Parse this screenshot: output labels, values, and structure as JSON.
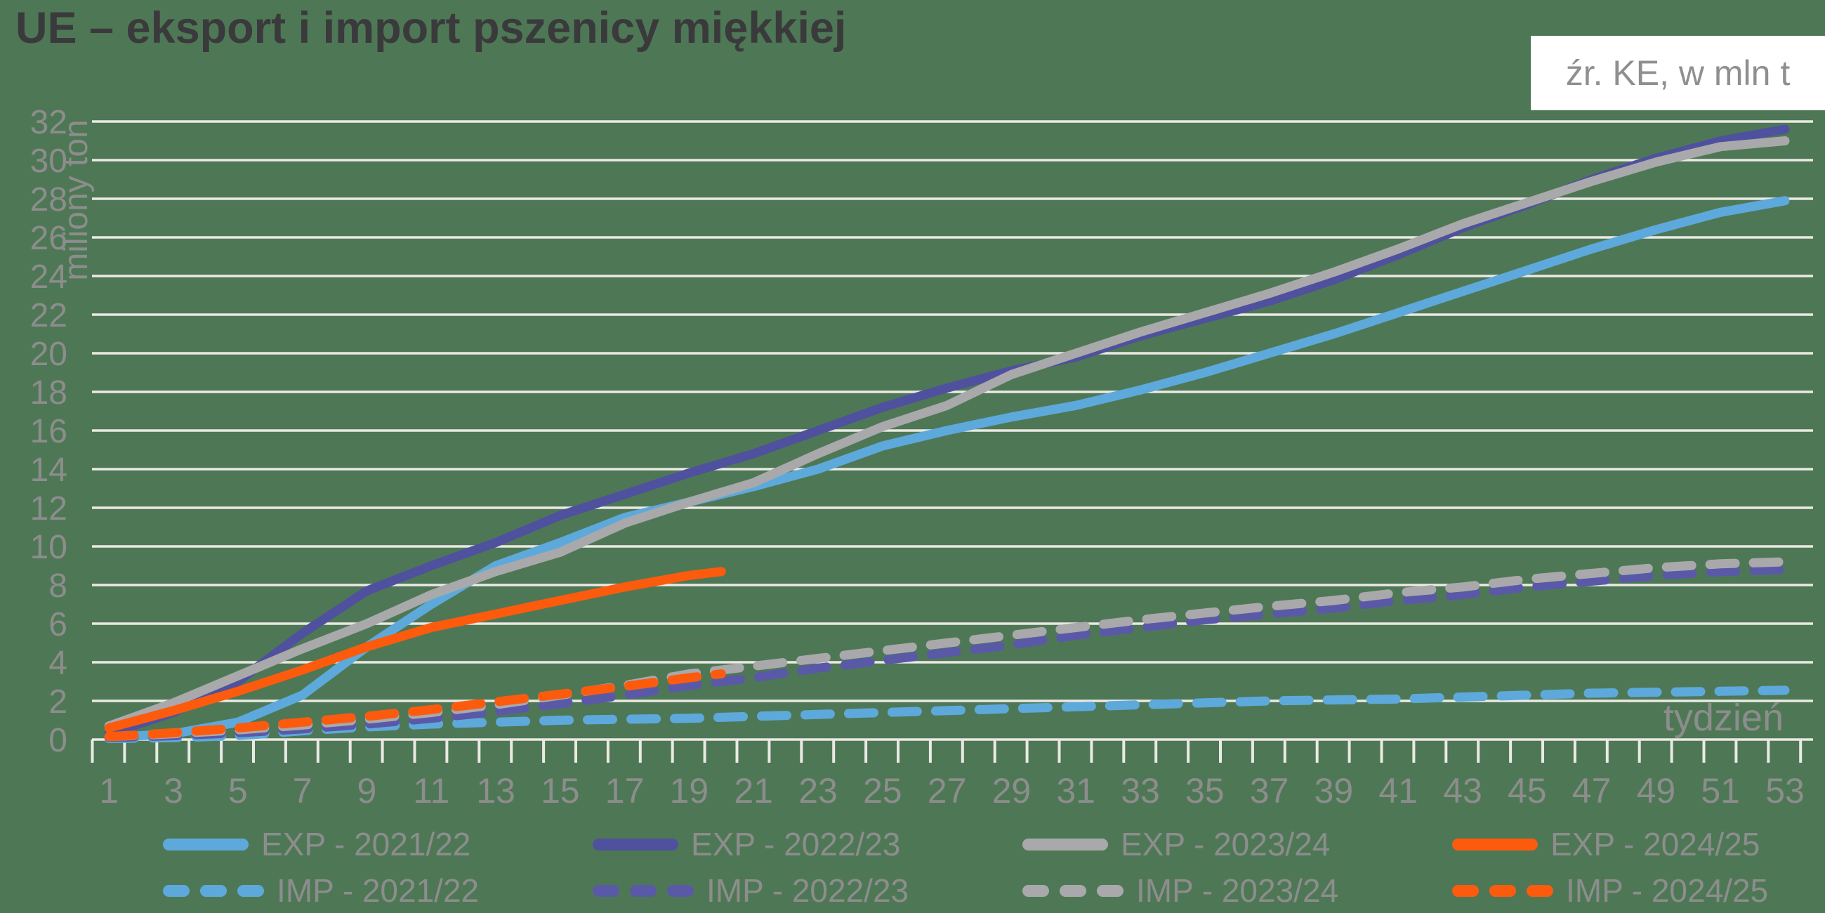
{
  "title": "UE – eksport i import pszenicy miękkiej",
  "source_note": "źr. KE, w mln t",
  "colors": {
    "background": "#4e7855",
    "gridline": "#ebe9e4",
    "axis_text": "#8d8d8d",
    "title_text": "#3a3a3c",
    "light_blue": "#5ea9dc",
    "dark_blue": "#4f519e",
    "purple": "#5a59a8",
    "gray": "#a9a9ab",
    "orange": "#fc5b0e"
  },
  "chart_data": {
    "type": "line",
    "title": "UE – eksport i import pszenicy miękkiej",
    "xlabel": "tydzień",
    "ylabel": "miliony ton",
    "unit_note": "źr. KE, w mln t",
    "xlim": [
      1,
      53
    ],
    "ylim": [
      0,
      32
    ],
    "grid": "horizontal white lines every 2 units",
    "legend_position": "bottom",
    "y_ticks": [
      0,
      2,
      4,
      6,
      8,
      10,
      12,
      14,
      16,
      18,
      20,
      22,
      24,
      26,
      28,
      30,
      32
    ],
    "x_tick_labels": [
      "1",
      "3",
      "5",
      "7",
      "9",
      "11",
      "13",
      "15",
      "17",
      "19",
      "21",
      "23",
      "25",
      "27",
      "29",
      "31",
      "33",
      "35",
      "37",
      "39",
      "41",
      "43",
      "45",
      "47",
      "49",
      "51",
      "53"
    ],
    "series": [
      {
        "name": "EXP - 2021/22",
        "style": "solid",
        "color": "#5ea9dc",
        "points": [
          [
            1,
            0.1
          ],
          [
            3,
            0.3
          ],
          [
            5,
            0.9
          ],
          [
            7,
            2.3
          ],
          [
            9,
            4.8
          ],
          [
            11,
            7.0
          ],
          [
            13,
            9.0
          ],
          [
            15,
            10.2
          ],
          [
            17,
            11.5
          ],
          [
            19,
            12.3
          ],
          [
            21,
            13.1
          ],
          [
            23,
            14.0
          ],
          [
            25,
            15.2
          ],
          [
            27,
            16.0
          ],
          [
            29,
            16.7
          ],
          [
            31,
            17.3
          ],
          [
            33,
            18.1
          ],
          [
            35,
            19.0
          ],
          [
            37,
            20.0
          ],
          [
            39,
            21.0
          ],
          [
            41,
            22.1
          ],
          [
            43,
            23.2
          ],
          [
            45,
            24.3
          ],
          [
            47,
            25.4
          ],
          [
            49,
            26.4
          ],
          [
            51,
            27.3
          ],
          [
            53,
            27.9
          ]
        ]
      },
      {
        "name": "EXP - 2022/23",
        "style": "solid",
        "color": "#4f519e",
        "points": [
          [
            1,
            0.3
          ],
          [
            3,
            1.4
          ],
          [
            5,
            3.0
          ],
          [
            7,
            5.5
          ],
          [
            9,
            7.7
          ],
          [
            11,
            9.0
          ],
          [
            13,
            10.2
          ],
          [
            15,
            11.6
          ],
          [
            17,
            12.7
          ],
          [
            19,
            13.8
          ],
          [
            21,
            14.8
          ],
          [
            23,
            16.0
          ],
          [
            25,
            17.2
          ],
          [
            27,
            18.2
          ],
          [
            29,
            19.1
          ],
          [
            31,
            19.8
          ],
          [
            33,
            20.9
          ],
          [
            35,
            21.8
          ],
          [
            37,
            22.7
          ],
          [
            39,
            23.8
          ],
          [
            41,
            25.1
          ],
          [
            43,
            26.5
          ],
          [
            45,
            27.7
          ],
          [
            47,
            29.0
          ],
          [
            49,
            30.1
          ],
          [
            51,
            31.0
          ],
          [
            53,
            31.6
          ]
        ]
      },
      {
        "name": "EXP - 2023/24",
        "style": "solid",
        "color": "#a9a9ab",
        "points": [
          [
            1,
            0.7
          ],
          [
            3,
            1.9
          ],
          [
            5,
            3.3
          ],
          [
            7,
            4.7
          ],
          [
            9,
            6.0
          ],
          [
            11,
            7.5
          ],
          [
            13,
            8.7
          ],
          [
            15,
            9.7
          ],
          [
            17,
            11.2
          ],
          [
            19,
            12.3
          ],
          [
            21,
            13.3
          ],
          [
            23,
            14.8
          ],
          [
            25,
            16.2
          ],
          [
            27,
            17.3
          ],
          [
            29,
            18.9
          ],
          [
            31,
            20.0
          ],
          [
            33,
            21.1
          ],
          [
            35,
            22.1
          ],
          [
            37,
            23.1
          ],
          [
            39,
            24.2
          ],
          [
            41,
            25.4
          ],
          [
            43,
            26.7
          ],
          [
            45,
            27.8
          ],
          [
            47,
            28.9
          ],
          [
            49,
            29.9
          ],
          [
            51,
            30.7
          ],
          [
            53,
            31.0
          ]
        ]
      },
      {
        "name": "EXP - 2024/25",
        "style": "solid",
        "color": "#fc5b0e",
        "points": [
          [
            1,
            0.6
          ],
          [
            3,
            1.5
          ],
          [
            5,
            2.5
          ],
          [
            7,
            3.6
          ],
          [
            9,
            4.8
          ],
          [
            11,
            5.8
          ],
          [
            13,
            6.5
          ],
          [
            15,
            7.2
          ],
          [
            17,
            7.9
          ],
          [
            19,
            8.5
          ],
          [
            20,
            8.7
          ]
        ]
      },
      {
        "name": "IMP - 2021/22",
        "style": "dashed",
        "color": "#5ea9dc",
        "points": [
          [
            1,
            0.05
          ],
          [
            3,
            0.1
          ],
          [
            5,
            0.2
          ],
          [
            7,
            0.45
          ],
          [
            9,
            0.65
          ],
          [
            11,
            0.8
          ],
          [
            13,
            0.9
          ],
          [
            15,
            1.0
          ],
          [
            17,
            1.05
          ],
          [
            19,
            1.1
          ],
          [
            21,
            1.2
          ],
          [
            23,
            1.3
          ],
          [
            25,
            1.4
          ],
          [
            27,
            1.5
          ],
          [
            29,
            1.6
          ],
          [
            31,
            1.7
          ],
          [
            33,
            1.8
          ],
          [
            35,
            1.9
          ],
          [
            37,
            2.0
          ],
          [
            39,
            2.05
          ],
          [
            41,
            2.1
          ],
          [
            43,
            2.2
          ],
          [
            45,
            2.3
          ],
          [
            47,
            2.4
          ],
          [
            49,
            2.45
          ],
          [
            51,
            2.5
          ],
          [
            53,
            2.55
          ]
        ]
      },
      {
        "name": "IMP - 2022/23",
        "style": "dashed",
        "color": "#5a59a8",
        "points": [
          [
            1,
            0.1
          ],
          [
            3,
            0.2
          ],
          [
            5,
            0.35
          ],
          [
            7,
            0.55
          ],
          [
            9,
            0.8
          ],
          [
            11,
            1.1
          ],
          [
            13,
            1.45
          ],
          [
            15,
            1.85
          ],
          [
            17,
            2.3
          ],
          [
            19,
            2.8
          ],
          [
            21,
            3.2
          ],
          [
            23,
            3.7
          ],
          [
            25,
            4.1
          ],
          [
            27,
            4.5
          ],
          [
            29,
            4.9
          ],
          [
            31,
            5.4
          ],
          [
            33,
            5.8
          ],
          [
            35,
            6.2
          ],
          [
            37,
            6.5
          ],
          [
            39,
            6.8
          ],
          [
            41,
            7.2
          ],
          [
            43,
            7.5
          ],
          [
            45,
            7.9
          ],
          [
            47,
            8.2
          ],
          [
            49,
            8.5
          ],
          [
            51,
            8.7
          ],
          [
            53,
            8.8
          ]
        ]
      },
      {
        "name": "IMP - 2023/24",
        "style": "dashed",
        "color": "#a9a9ab",
        "points": [
          [
            1,
            0.15
          ],
          [
            3,
            0.3
          ],
          [
            5,
            0.5
          ],
          [
            7,
            0.75
          ],
          [
            9,
            1.05
          ],
          [
            11,
            1.4
          ],
          [
            13,
            1.8
          ],
          [
            15,
            2.3
          ],
          [
            17,
            2.8
          ],
          [
            19,
            3.4
          ],
          [
            21,
            3.8
          ],
          [
            23,
            4.2
          ],
          [
            25,
            4.6
          ],
          [
            27,
            5.0
          ],
          [
            29,
            5.4
          ],
          [
            31,
            5.8
          ],
          [
            33,
            6.2
          ],
          [
            35,
            6.55
          ],
          [
            37,
            6.9
          ],
          [
            39,
            7.2
          ],
          [
            41,
            7.6
          ],
          [
            43,
            7.9
          ],
          [
            45,
            8.3
          ],
          [
            47,
            8.6
          ],
          [
            49,
            8.9
          ],
          [
            51,
            9.1
          ],
          [
            53,
            9.2
          ]
        ]
      },
      {
        "name": "IMP - 2024/25",
        "style": "dashed",
        "color": "#fc5b0e",
        "points": [
          [
            1,
            0.15
          ],
          [
            3,
            0.35
          ],
          [
            5,
            0.6
          ],
          [
            7,
            0.9
          ],
          [
            9,
            1.2
          ],
          [
            11,
            1.55
          ],
          [
            13,
            1.95
          ],
          [
            15,
            2.35
          ],
          [
            17,
            2.75
          ],
          [
            19,
            3.2
          ],
          [
            20,
            3.4
          ]
        ]
      }
    ]
  }
}
